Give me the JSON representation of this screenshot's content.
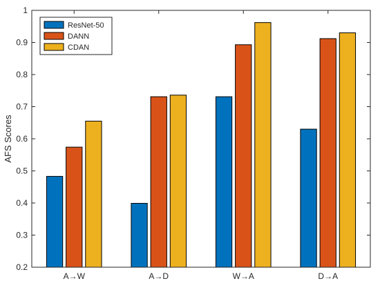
{
  "chart_data": {
    "type": "bar",
    "title": "",
    "xlabel": "",
    "ylabel": "AFS Scores",
    "categories": [
      "A→W",
      "A→D",
      "W→A",
      "D→A"
    ],
    "series": [
      {
        "name": "ResNet-50",
        "color": "#0072BD",
        "values": [
          0.483,
          0.399,
          0.731,
          0.63
        ]
      },
      {
        "name": "DANN",
        "color": "#D95319",
        "values": [
          0.574,
          0.731,
          0.893,
          0.912
        ]
      },
      {
        "name": "CDAN",
        "color": "#EDB120",
        "values": [
          0.655,
          0.736,
          0.962,
          0.93
        ]
      }
    ],
    "ylim": [
      0.2,
      1.0
    ],
    "yticks": [
      0.2,
      0.3,
      0.4,
      0.5,
      0.6,
      0.7,
      0.8,
      0.9,
      1.0
    ],
    "ytick_labels": [
      "0.2",
      "0.3",
      "0.4",
      "0.5",
      "0.6",
      "0.7",
      "0.8",
      "0.9",
      "1"
    ],
    "grid": false,
    "legend_position": "top-left"
  }
}
